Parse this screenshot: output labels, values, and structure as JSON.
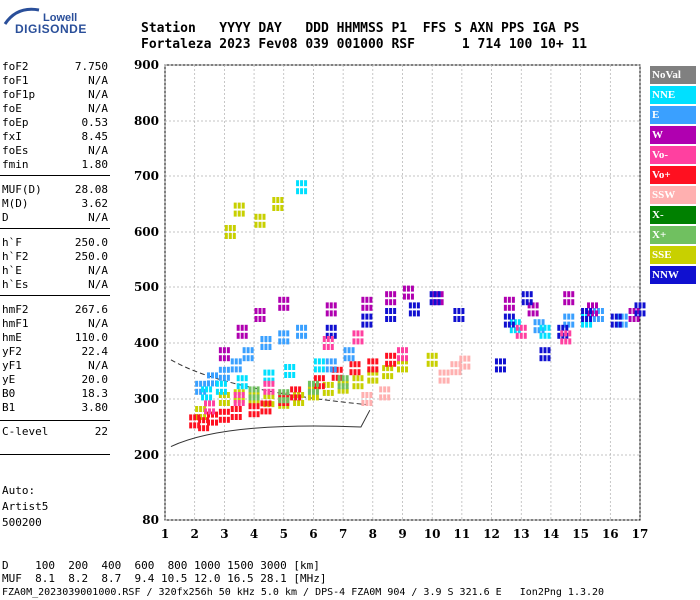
{
  "logo": {
    "top": "Lowell",
    "main": "DIGISONDE"
  },
  "header": {
    "row1": "Station   YYYY DAY   DDD HHMMSS P1  FFS S AXN PPS IGA PS",
    "row2": "Fortaleza 2023 Fev08 039 001000 RSF      1 714 100 10+ 11"
  },
  "params": [
    {
      "name": "foF2",
      "value": "7.750"
    },
    {
      "name": "foF1",
      "value": "N/A"
    },
    {
      "name": "foF1p",
      "value": "N/A"
    },
    {
      "name": "foE",
      "value": "N/A"
    },
    {
      "name": "foEp",
      "value": "0.53"
    },
    {
      "name": "fxI",
      "value": "8.45"
    },
    {
      "name": "foEs",
      "value": "N/A"
    },
    {
      "name": "fmin",
      "value": "1.80"
    },
    {
      "name": "MUF(D)",
      "value": "28.08"
    },
    {
      "name": "M(D)",
      "value": "3.62"
    },
    {
      "name": "D",
      "value": "N/A"
    },
    {
      "name": "h`F",
      "value": "250.0"
    },
    {
      "name": "h`F2",
      "value": "250.0"
    },
    {
      "name": "h`E",
      "value": "N/A"
    },
    {
      "name": "h`Es",
      "value": "N/A"
    },
    {
      "name": "hmF2",
      "value": "267.6"
    },
    {
      "name": "hmF1",
      "value": "N/A"
    },
    {
      "name": "hmE",
      "value": "110.0"
    },
    {
      "name": "yF2",
      "value": "22.4"
    },
    {
      "name": "yF1",
      "value": "N/A"
    },
    {
      "name": "yE",
      "value": "20.0"
    },
    {
      "name": "B0",
      "value": "18.3"
    },
    {
      "name": "B1",
      "value": "3.80"
    },
    {
      "name": "C-level",
      "value": "22"
    }
  ],
  "auto": {
    "line1": "Auto:",
    "line2": "Artist5",
    "line3": "500200"
  },
  "footer": {
    "row1": "D    100  200  400  600  800 1000 1500 3000 [km]",
    "row2": "MUF  8.1  8.2  8.7  9.4 10.5 12.0 16.5 28.1 [MHz]",
    "row3": "FZA0M_2023039001000.RSF / 320fx256h 50 kHz 5.0 km / DPS-4 FZA0M 904 / 3.9 S 321.6 E   Ion2Png 1.3.20"
  },
  "legend": [
    {
      "label": "NoVal",
      "color": "#808080"
    },
    {
      "label": "NNE",
      "color": "#00e0ff"
    },
    {
      "label": "E",
      "color": "#3aa0ff"
    },
    {
      "label": "W",
      "color": "#b000b0"
    },
    {
      "label": "Vo-",
      "color": "#ff40a0"
    },
    {
      "label": "Vo+",
      "color": "#ff1020"
    },
    {
      "label": "SSW",
      "color": "#ffb0b0"
    },
    {
      "label": "X-",
      "color": "#008000"
    },
    {
      "label": "X+",
      "color": "#70c060"
    },
    {
      "label": "SSE",
      "color": "#c8d000"
    },
    {
      "label": "NNW",
      "color": "#1010d0"
    }
  ],
  "chart_data": {
    "type": "scatter",
    "x_ticks": [
      1,
      2,
      3,
      4,
      5,
      6,
      7,
      8,
      9,
      10,
      11,
      12,
      13,
      14,
      15,
      16,
      17
    ],
    "y_ticks": [
      80,
      200,
      300,
      400,
      500,
      600,
      700,
      800,
      900
    ],
    "xlim": [
      1,
      17
    ],
    "ylim": [
      80,
      900
    ],
    "grid": true,
    "series": [
      {
        "name": "SSE",
        "values": [
          [
            2.2,
            275
          ],
          [
            3.0,
            300
          ],
          [
            3.5,
            305
          ],
          [
            4.0,
            300
          ],
          [
            4.5,
            298
          ],
          [
            5.0,
            295
          ],
          [
            5.5,
            300
          ],
          [
            6.0,
            310
          ],
          [
            6.5,
            318
          ],
          [
            7.0,
            322
          ],
          [
            7.5,
            330
          ],
          [
            8.0,
            340
          ],
          [
            8.5,
            348
          ],
          [
            9.0,
            360
          ],
          [
            10.0,
            370
          ],
          [
            3.2,
            600
          ],
          [
            3.5,
            640
          ],
          [
            4.2,
            620
          ],
          [
            4.8,
            650
          ]
        ]
      },
      {
        "name": "Vo+",
        "values": [
          [
            2.0,
            260
          ],
          [
            2.3,
            255
          ],
          [
            2.6,
            265
          ],
          [
            3.0,
            270
          ],
          [
            3.4,
            275
          ],
          [
            4.0,
            280
          ],
          [
            4.4,
            285
          ],
          [
            5.0,
            300
          ],
          [
            5.4,
            310
          ],
          [
            6.2,
            330
          ],
          [
            6.8,
            345
          ],
          [
            7.4,
            355
          ],
          [
            8.0,
            360
          ],
          [
            8.6,
            370
          ]
        ]
      },
      {
        "name": "E",
        "values": [
          [
            2.2,
            320
          ],
          [
            2.6,
            335
          ],
          [
            3.0,
            345
          ],
          [
            3.4,
            360
          ],
          [
            3.8,
            380
          ],
          [
            4.4,
            400
          ],
          [
            5.0,
            410
          ],
          [
            5.6,
            420
          ],
          [
            6.6,
            360
          ],
          [
            7.2,
            380
          ],
          [
            13.6,
            430
          ],
          [
            14.6,
            440
          ],
          [
            15.6,
            450
          ],
          [
            16.4,
            440
          ]
        ]
      },
      {
        "name": "NNE",
        "values": [
          [
            2.4,
            310
          ],
          [
            2.9,
            320
          ],
          [
            3.6,
            330
          ],
          [
            4.5,
            340
          ],
          [
            5.2,
            350
          ],
          [
            5.6,
            680
          ],
          [
            6.2,
            360
          ],
          [
            12.8,
            430
          ],
          [
            13.8,
            420
          ],
          [
            15.2,
            440
          ]
        ]
      },
      {
        "name": "W",
        "values": [
          [
            3.0,
            380
          ],
          [
            3.6,
            420
          ],
          [
            4.2,
            450
          ],
          [
            5.0,
            470
          ],
          [
            6.6,
            460
          ],
          [
            7.8,
            470
          ],
          [
            8.6,
            480
          ],
          [
            9.2,
            490
          ],
          [
            10.2,
            480
          ],
          [
            12.6,
            470
          ],
          [
            13.4,
            460
          ],
          [
            14.6,
            480
          ],
          [
            15.4,
            460
          ],
          [
            16.8,
            450
          ]
        ]
      },
      {
        "name": "NNW",
        "values": [
          [
            6.6,
            420
          ],
          [
            7.8,
            440
          ],
          [
            8.6,
            450
          ],
          [
            9.4,
            460
          ],
          [
            10.1,
            480
          ],
          [
            10.9,
            450
          ],
          [
            12.3,
            360
          ],
          [
            12.6,
            440
          ],
          [
            13.2,
            480
          ],
          [
            13.8,
            380
          ],
          [
            14.4,
            420
          ],
          [
            15.2,
            450
          ],
          [
            16.2,
            440
          ],
          [
            17.0,
            460
          ]
        ]
      },
      {
        "name": "SSW",
        "values": [
          [
            7.8,
            300
          ],
          [
            8.4,
            310
          ],
          [
            10.4,
            340
          ],
          [
            10.8,
            355
          ],
          [
            11.1,
            365
          ]
        ]
      },
      {
        "name": "X+",
        "values": [
          [
            4.0,
            310
          ],
          [
            5.0,
            305
          ],
          [
            6.0,
            320
          ],
          [
            7.0,
            330
          ]
        ]
      },
      {
        "name": "Vo-",
        "values": [
          [
            2.5,
            285
          ],
          [
            3.5,
            300
          ],
          [
            4.5,
            320
          ],
          [
            6.5,
            400
          ],
          [
            7.5,
            410
          ],
          [
            9.0,
            380
          ],
          [
            13.0,
            420
          ],
          [
            14.5,
            410
          ]
        ]
      }
    ]
  }
}
